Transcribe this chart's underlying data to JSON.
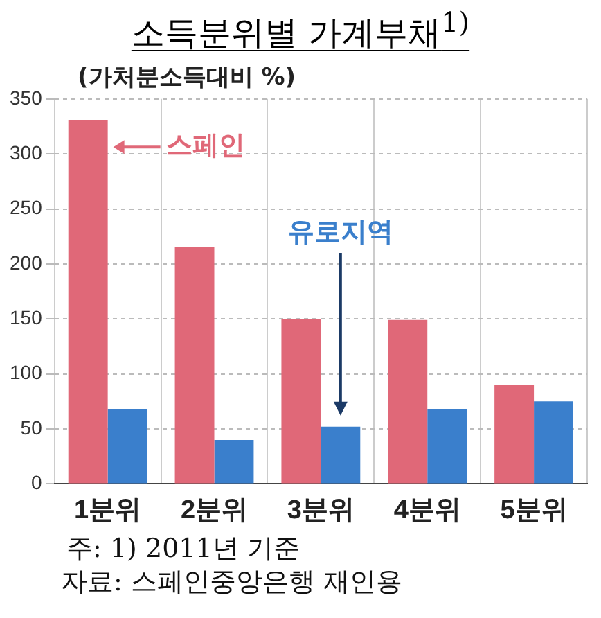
{
  "chart_data": {
    "type": "bar",
    "title": "소득분위별 가계부채$^{1)}$",
    "ylabel": "(가처분소득대비 %)",
    "categories": [
      "1분위",
      "2분위",
      "3분위",
      "4분위",
      "5분위"
    ],
    "series": [
      {
        "name": "스페인",
        "color": "#e06878",
        "values": [
          331,
          215,
          150,
          149,
          90
        ]
      },
      {
        "name": "유로지역",
        "color": "#3a7fcc",
        "values": [
          68,
          40,
          52,
          68,
          75
        ]
      }
    ],
    "ylim": [
      0,
      350
    ],
    "yticks": [
      0,
      50,
      100,
      150,
      200,
      250,
      300,
      350
    ],
    "grid": true,
    "annotations": [
      "주: 1) 2011년 기준",
      "자료: 스페인중앙은행 재인용"
    ]
  }
}
